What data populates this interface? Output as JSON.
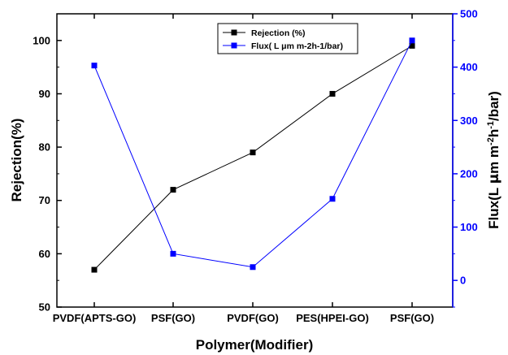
{
  "chart_data": {
    "type": "line",
    "categories": [
      "PVDF(APTS-GO)",
      "PSF(GO)",
      "PVDF(GO)",
      "PES(HPEI-GO)",
      "PSF(GO)"
    ],
    "series": [
      {
        "name": "Rejection (%)",
        "axis": "left",
        "color": "#000000",
        "marker": "square",
        "values": [
          57,
          72,
          79,
          90,
          99
        ]
      },
      {
        "name": "Flux( L μm m-2h-1/bar)",
        "axis": "right",
        "color": "#0000ff",
        "marker": "square",
        "values": [
          403,
          50,
          25,
          153,
          450
        ]
      }
    ],
    "xlabel": "Polymer(Modifier)",
    "ylabel_left": "Rejection(%)",
    "ylabel_right_parts": [
      "Flux(L ",
      "μ",
      "m m",
      "-2",
      "h",
      "-1",
      "/bar)"
    ],
    "ylim_left": [
      50,
      105
    ],
    "yticks_left": [
      50,
      60,
      70,
      80,
      90,
      100
    ],
    "ylim_right": [
      -50,
      500
    ],
    "yticks_right": [
      0,
      100,
      200,
      300,
      400,
      500
    ],
    "grid": false,
    "legend_position": "top-center",
    "axis_colors": {
      "left": "#000000",
      "right": "#0000ff"
    }
  }
}
